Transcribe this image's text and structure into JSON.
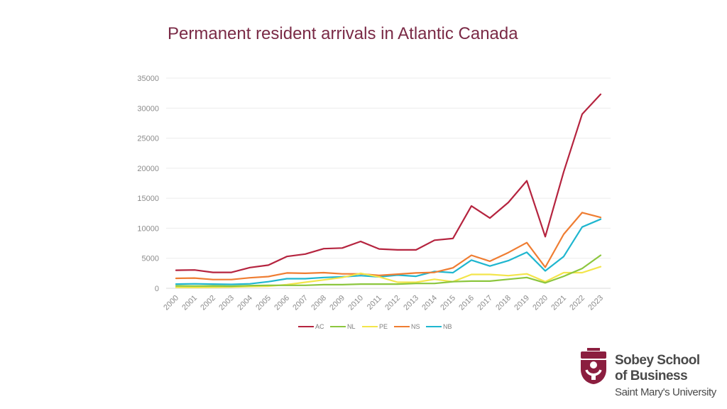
{
  "slide": {
    "title": "Permanent resident arrivals in Atlantic Canada"
  },
  "logo": {
    "line1": "Sobey School",
    "line2": "of Business",
    "line3": "Saint Mary's University",
    "color": "#8b1e3f"
  },
  "chart_data": {
    "type": "line",
    "title": "",
    "xlabel": "",
    "ylabel": "",
    "ylim": [
      0,
      35000
    ],
    "yticks": [
      0,
      5000,
      10000,
      15000,
      20000,
      25000,
      30000,
      35000
    ],
    "grid": true,
    "legend_position": "bottom",
    "categories": [
      "2000",
      "2001",
      "2002",
      "2003",
      "2004",
      "2005",
      "2006",
      "2007",
      "2008",
      "2009",
      "2010",
      "2011",
      "2012",
      "2013",
      "2014",
      "2015",
      "2016",
      "2017",
      "2018",
      "2019",
      "2020",
      "2021",
      "2022",
      "2023"
    ],
    "series": [
      {
        "name": "AC",
        "color": "#b5243f",
        "values": [
          3000,
          3050,
          2650,
          2650,
          3450,
          3850,
          5300,
          5700,
          6600,
          6700,
          7800,
          6550,
          6400,
          6400,
          8000,
          8300,
          13700,
          11700,
          14300,
          17900,
          8600,
          19400,
          29000,
          32300
        ]
      },
      {
        "name": "NL",
        "color": "#8cc63e",
        "values": [
          400,
          380,
          400,
          350,
          450,
          500,
          500,
          500,
          600,
          600,
          700,
          700,
          700,
          800,
          800,
          1100,
          1200,
          1200,
          1500,
          1800,
          900,
          2000,
          3300,
          5500
        ]
      },
      {
        "name": "PE",
        "color": "#f3e54b",
        "values": [
          150,
          130,
          150,
          200,
          300,
          350,
          600,
          1000,
          1400,
          1800,
          2500,
          1900,
          1000,
          1000,
          1500,
          1100,
          2300,
          2300,
          2100,
          2400,
          1100,
          2600,
          2600,
          3600
        ]
      },
      {
        "name": "NS",
        "color": "#ef7d32",
        "values": [
          1650,
          1700,
          1450,
          1450,
          1750,
          1950,
          2550,
          2500,
          2600,
          2400,
          2400,
          2150,
          2350,
          2550,
          2650,
          3400,
          5500,
          4500,
          5950,
          7600,
          3500,
          9000,
          12600,
          11800
        ]
      },
      {
        "name": "NB",
        "color": "#1fb6cf",
        "values": [
          700,
          750,
          700,
          650,
          750,
          1100,
          1600,
          1600,
          1800,
          1900,
          2100,
          1900,
          2200,
          2000,
          2800,
          2600,
          4700,
          3700,
          4600,
          6000,
          2900,
          5300,
          10200,
          11500
        ]
      }
    ]
  }
}
